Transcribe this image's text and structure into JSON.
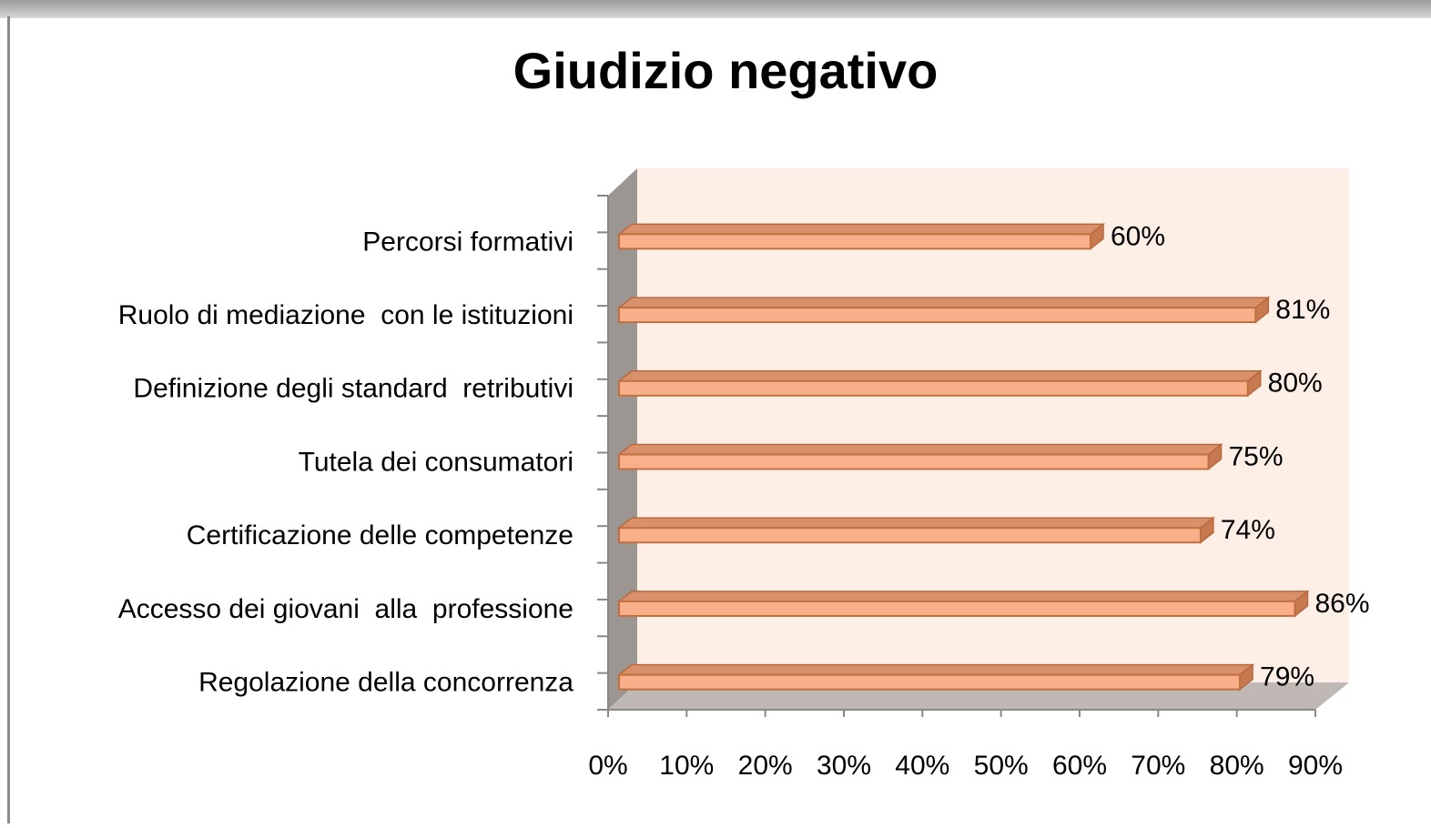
{
  "chart_data": {
    "type": "bar",
    "orientation": "horizontal",
    "title": "Giudizio negativo",
    "categories": [
      "Percorsi formativi",
      "Ruolo di mediazione  con le istituzioni",
      "Definizione degli standard  retributivi",
      "Tutela dei consumatori",
      "Certificazione delle competenze",
      "Accesso dei giovani  alla  professione",
      "Regolazione della concorrenza"
    ],
    "values": [
      60,
      81,
      80,
      75,
      74,
      86,
      79
    ],
    "value_labels": [
      "60%",
      "81%",
      "80%",
      "75%",
      "74%",
      "86%",
      "79%"
    ],
    "color": "#f9b08a",
    "xlim": [
      0,
      90
    ],
    "xticks": [
      {
        "value": 0,
        "label": "0%"
      },
      {
        "value": 10,
        "label": "10%"
      },
      {
        "value": 20,
        "label": "20%"
      },
      {
        "value": 30,
        "label": "30%"
      },
      {
        "value": 40,
        "label": "40%"
      },
      {
        "value": 50,
        "label": "50%"
      },
      {
        "value": 60,
        "label": "60%"
      },
      {
        "value": 70,
        "label": "70%"
      },
      {
        "value": 80,
        "label": "80%"
      },
      {
        "value": 90,
        "label": "90%"
      }
    ]
  }
}
